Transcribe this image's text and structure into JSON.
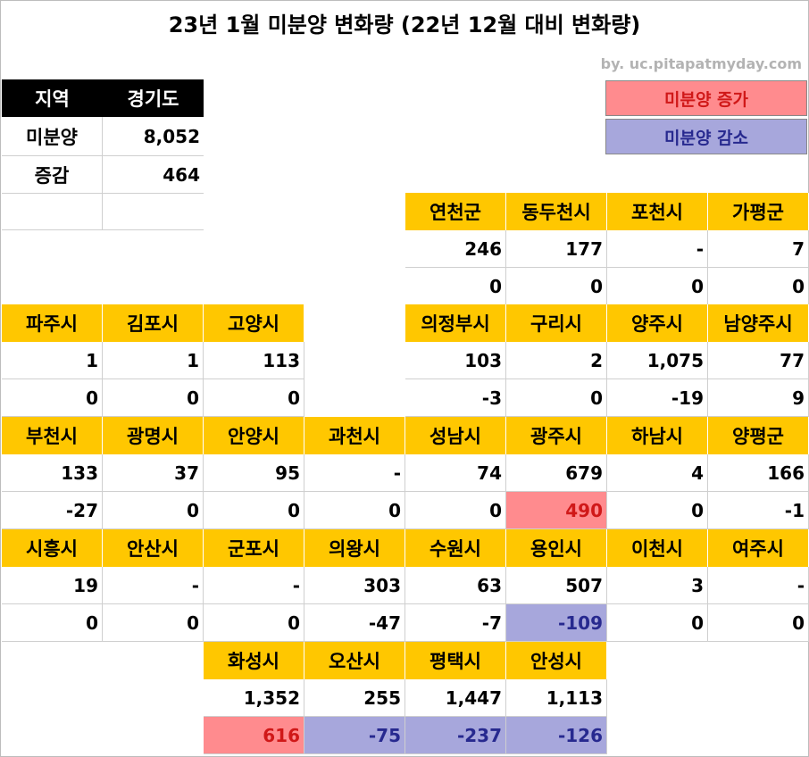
{
  "title": "23년 1월 미분양 변화량 (22년 12월 대비 변화량)",
  "credit": "by. uc.pitapatmyday.com",
  "legend": {
    "increase": "미분양 증가",
    "decrease": "미분양 감소"
  },
  "summary": {
    "region_label": "지역",
    "region_value": "경기도",
    "unsold_label": "미분양",
    "unsold_value": "8,052",
    "change_label": "증감",
    "change_value": "464"
  },
  "colors": {
    "header_yellow": "#ffc700",
    "increase_bg": "#ff8b8e",
    "increase_text": "#d01818",
    "decrease_bg": "#a7a7dc",
    "decrease_text": "#27298f"
  },
  "rows": [
    {
      "cities": [
        {
          "col": 4,
          "name": "연천군",
          "unsold": "246",
          "change": "0",
          "trend": "none"
        },
        {
          "col": 5,
          "name": "동두천시",
          "unsold": "177",
          "change": "0",
          "trend": "none"
        },
        {
          "col": 6,
          "name": "포천시",
          "unsold": "-",
          "change": "0",
          "trend": "none"
        },
        {
          "col": 7,
          "name": "가평군",
          "unsold": "7",
          "change": "0",
          "trend": "none"
        }
      ]
    },
    {
      "cities": [
        {
          "col": 0,
          "name": "파주시",
          "unsold": "1",
          "change": "0",
          "trend": "none"
        },
        {
          "col": 1,
          "name": "김포시",
          "unsold": "1",
          "change": "0",
          "trend": "none"
        },
        {
          "col": 2,
          "name": "고양시",
          "unsold": "113",
          "change": "0",
          "trend": "none"
        },
        {
          "col": 4,
          "name": "의정부시",
          "unsold": "103",
          "change": "-3",
          "trend": "none"
        },
        {
          "col": 5,
          "name": "구리시",
          "unsold": "2",
          "change": "0",
          "trend": "none"
        },
        {
          "col": 6,
          "name": "양주시",
          "unsold": "1,075",
          "change": "-19",
          "trend": "none"
        },
        {
          "col": 7,
          "name": "남양주시",
          "unsold": "77",
          "change": "9",
          "trend": "none"
        }
      ]
    },
    {
      "cities": [
        {
          "col": 0,
          "name": "부천시",
          "unsold": "133",
          "change": "-27",
          "trend": "none"
        },
        {
          "col": 1,
          "name": "광명시",
          "unsold": "37",
          "change": "0",
          "trend": "none"
        },
        {
          "col": 2,
          "name": "안양시",
          "unsold": "95",
          "change": "0",
          "trend": "none"
        },
        {
          "col": 3,
          "name": "과천시",
          "unsold": "-",
          "change": "0",
          "trend": "none"
        },
        {
          "col": 4,
          "name": "성남시",
          "unsold": "74",
          "change": "0",
          "trend": "none"
        },
        {
          "col": 5,
          "name": "광주시",
          "unsold": "679",
          "change": "490",
          "trend": "increase"
        },
        {
          "col": 6,
          "name": "하남시",
          "unsold": "4",
          "change": "0",
          "trend": "none"
        },
        {
          "col": 7,
          "name": "양평군",
          "unsold": "166",
          "change": "-1",
          "trend": "none"
        }
      ]
    },
    {
      "cities": [
        {
          "col": 0,
          "name": "시흥시",
          "unsold": "19",
          "change": "0",
          "trend": "none"
        },
        {
          "col": 1,
          "name": "안산시",
          "unsold": "-",
          "change": "0",
          "trend": "none"
        },
        {
          "col": 2,
          "name": "군포시",
          "unsold": "-",
          "change": "0",
          "trend": "none"
        },
        {
          "col": 3,
          "name": "의왕시",
          "unsold": "303",
          "change": "-47",
          "trend": "none"
        },
        {
          "col": 4,
          "name": "수원시",
          "unsold": "63",
          "change": "-7",
          "trend": "none"
        },
        {
          "col": 5,
          "name": "용인시",
          "unsold": "507",
          "change": "-109",
          "trend": "decrease"
        },
        {
          "col": 6,
          "name": "이천시",
          "unsold": "3",
          "change": "0",
          "trend": "none"
        },
        {
          "col": 7,
          "name": "여주시",
          "unsold": "-",
          "change": "0",
          "trend": "none"
        }
      ]
    },
    {
      "cities": [
        {
          "col": 2,
          "name": "화성시",
          "unsold": "1,352",
          "change": "616",
          "trend": "increase"
        },
        {
          "col": 3,
          "name": "오산시",
          "unsold": "255",
          "change": "-75",
          "trend": "decrease"
        },
        {
          "col": 4,
          "name": "평택시",
          "unsold": "1,447",
          "change": "-237",
          "trend": "decrease"
        },
        {
          "col": 5,
          "name": "안성시",
          "unsold": "1,113",
          "change": "-126",
          "trend": "decrease"
        }
      ]
    }
  ]
}
